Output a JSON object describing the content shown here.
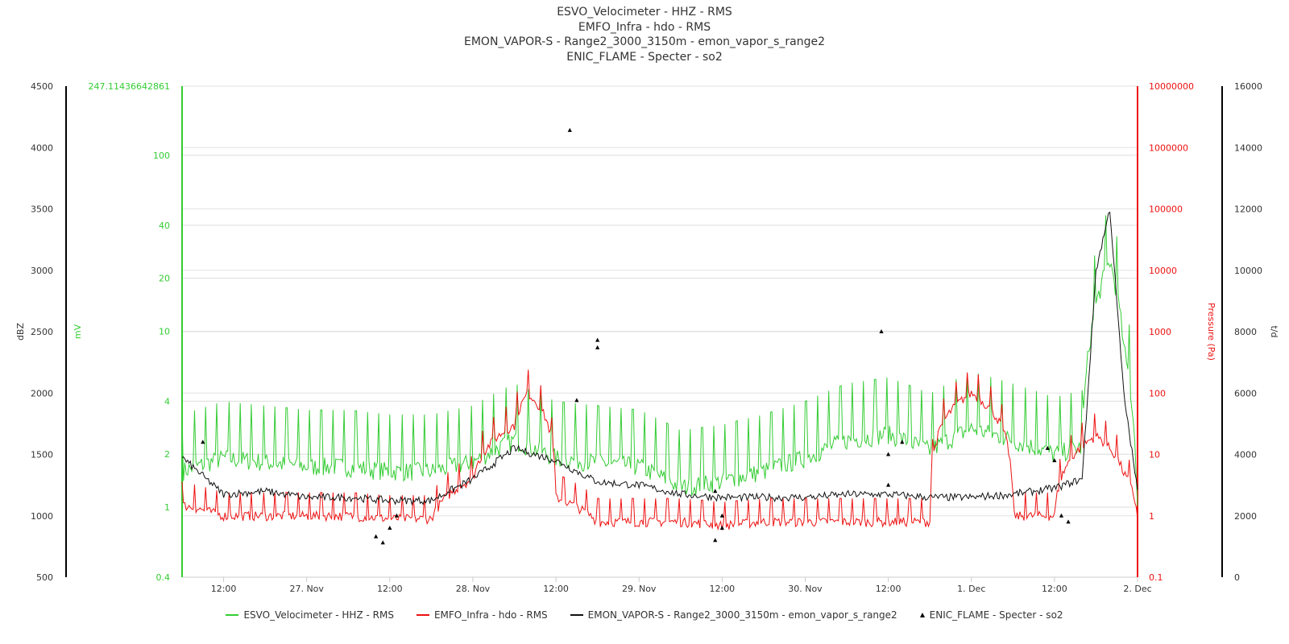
{
  "titles": [
    "ESVO_Velocimeter - HHZ - RMS",
    "EMFO_Infra - hdo - RMS",
    "EMON_VAPOR-S - Range2_3000_3150m - emon_vapor_s_range2",
    "ENIC_FLAME - Specter - so2"
  ],
  "colors": {
    "green": "#33cc33",
    "red": "#ee1111",
    "black": "#111111",
    "axis_text": "#333333"
  },
  "chart_data": {
    "type": "line",
    "x_range": [
      "2023-11-26T06:00",
      "2023-12-02T00:00"
    ],
    "x_ticks": [
      {
        "label": "12:00",
        "t": "2023-11-26T12:00"
      },
      {
        "label": "27. Nov",
        "t": "2023-11-27T00:00"
      },
      {
        "label": "12:00",
        "t": "2023-11-27T12:00"
      },
      {
        "label": "28. Nov",
        "t": "2023-11-28T00:00"
      },
      {
        "label": "12:00",
        "t": "2023-11-28T12:00"
      },
      {
        "label": "29. Nov",
        "t": "2023-11-29T00:00"
      },
      {
        "label": "12:00",
        "t": "2023-11-29T12:00"
      },
      {
        "label": "30. Nov",
        "t": "2023-11-30T00:00"
      },
      {
        "label": "12:00",
        "t": "2023-11-30T12:00"
      },
      {
        "label": "1. Dec",
        "t": "2023-12-01T00:00"
      },
      {
        "label": "12:00",
        "t": "2023-12-01T12:00"
      },
      {
        "label": "2. Dec",
        "t": "2023-12-02T00:00"
      }
    ],
    "axes": {
      "dbz": {
        "label": "dBZ",
        "min": 500,
        "max": 4500,
        "ticks": [
          "500",
          "1000",
          "1500",
          "2000",
          "2500",
          "3000",
          "3500",
          "4000",
          "4500"
        ]
      },
      "mv": {
        "label": "mV",
        "scale": "log",
        "min": 0.4,
        "max": 247.11436642861,
        "ticks": [
          "0.4",
          "1",
          "2",
          "4",
          "10",
          "20",
          "40",
          "100",
          "247.11436642861"
        ]
      },
      "pressure": {
        "label": "Pressure (Pa)",
        "scale": "log",
        "min": 0.1,
        "max": 10000000,
        "ticks": [
          "0.1",
          "1",
          "10",
          "100",
          "1000",
          "10000",
          "100000",
          "1000000",
          "10000000"
        ]
      },
      "td": {
        "label": "t/d",
        "min": 0,
        "max": 16000,
        "ticks": [
          "0",
          "2000",
          "4000",
          "6000",
          "8000",
          "10000",
          "12000",
          "14000",
          "16000"
        ]
      }
    },
    "series": [
      {
        "name": "ESVO_Velocimeter - HHZ - RMS",
        "type": "line",
        "axis": "mv",
        "color": "#33cc33",
        "points": [
          [
            "2023-11-26T06:00",
            1.6
          ],
          [
            "2023-11-26T12:00",
            1.9
          ],
          [
            "2023-11-26T18:00",
            1.8
          ],
          [
            "2023-11-27T00:00",
            1.7
          ],
          [
            "2023-11-27T06:00",
            1.7
          ],
          [
            "2023-11-27T12:00",
            1.6
          ],
          [
            "2023-11-27T18:00",
            1.6
          ],
          [
            "2023-11-28T00:00",
            1.8
          ],
          [
            "2023-11-28T06:00",
            2.4
          ],
          [
            "2023-11-28T12:00",
            1.9
          ],
          [
            "2023-11-28T18:00",
            1.8
          ],
          [
            "2023-11-29T00:00",
            1.7
          ],
          [
            "2023-11-29T06:00",
            1.3
          ],
          [
            "2023-11-29T12:00",
            1.4
          ],
          [
            "2023-11-29T18:00",
            1.6
          ],
          [
            "2023-11-30T00:00",
            1.9
          ],
          [
            "2023-11-30T06:00",
            2.4
          ],
          [
            "2023-11-30T12:00",
            2.6
          ],
          [
            "2023-11-30T18:00",
            2.1
          ],
          [
            "2023-12-01T00:00",
            2.8
          ],
          [
            "2023-12-01T06:00",
            2.4
          ],
          [
            "2023-12-01T12:00",
            2.0
          ],
          [
            "2023-12-01T16:00",
            2.2
          ],
          [
            "2023-12-01T18:00",
            14
          ],
          [
            "2023-12-01T20:00",
            25
          ],
          [
            "2023-12-01T22:00",
            8
          ],
          [
            "2023-12-02T00:00",
            1.0
          ]
        ]
      },
      {
        "name": "EMFO_Infra - hdo - RMS",
        "type": "line",
        "axis": "pressure",
        "color": "#ee1111",
        "points": [
          [
            "2023-11-26T06:00",
            1.5
          ],
          [
            "2023-11-26T12:00",
            1.0
          ],
          [
            "2023-11-26T18:00",
            1.0
          ],
          [
            "2023-11-27T00:00",
            1.0
          ],
          [
            "2023-11-27T06:00",
            1.0
          ],
          [
            "2023-11-27T12:00",
            0.9
          ],
          [
            "2023-11-27T18:00",
            0.9
          ],
          [
            "2023-11-28T00:00",
            4
          ],
          [
            "2023-11-28T06:00",
            30
          ],
          [
            "2023-11-28T08:00",
            100
          ],
          [
            "2023-11-28T12:00",
            2
          ],
          [
            "2023-11-28T18:00",
            0.8
          ],
          [
            "2023-11-29T00:00",
            0.8
          ],
          [
            "2023-11-29T06:00",
            0.8
          ],
          [
            "2023-11-29T12:00",
            0.7
          ],
          [
            "2023-11-29T18:00",
            0.8
          ],
          [
            "2023-11-30T00:00",
            0.8
          ],
          [
            "2023-11-30T06:00",
            0.8
          ],
          [
            "2023-11-30T12:00",
            0.8
          ],
          [
            "2023-11-30T18:00",
            0.8
          ],
          [
            "2023-12-01T00:00",
            100
          ],
          [
            "2023-12-01T06:00",
            1.0
          ],
          [
            "2023-12-01T12:00",
            1.0
          ],
          [
            "2023-12-01T18:00",
            20
          ],
          [
            "2023-12-01T22:00",
            5
          ],
          [
            "2023-12-02T00:00",
            1.0
          ]
        ]
      },
      {
        "name": "EMON_VAPOR-S - Range2_3000_3150m - emon_vapor_s_range2",
        "type": "line",
        "axis": "td",
        "color": "#111111",
        "points": [
          [
            "2023-11-26T06:00",
            3900
          ],
          [
            "2023-11-26T12:00",
            2700
          ],
          [
            "2023-11-26T18:00",
            2800
          ],
          [
            "2023-11-27T00:00",
            2600
          ],
          [
            "2023-11-27T06:00",
            2600
          ],
          [
            "2023-11-27T12:00",
            2500
          ],
          [
            "2023-11-27T18:00",
            2500
          ],
          [
            "2023-11-28T00:00",
            3200
          ],
          [
            "2023-11-28T06:00",
            4200
          ],
          [
            "2023-11-28T12:00",
            3800
          ],
          [
            "2023-11-28T18:00",
            3100
          ],
          [
            "2023-11-29T00:00",
            3000
          ],
          [
            "2023-11-29T06:00",
            2700
          ],
          [
            "2023-11-29T12:00",
            2600
          ],
          [
            "2023-11-29T18:00",
            2600
          ],
          [
            "2023-11-30T00:00",
            2600
          ],
          [
            "2023-11-30T06:00",
            2700
          ],
          [
            "2023-11-30T12:00",
            2700
          ],
          [
            "2023-11-30T18:00",
            2600
          ],
          [
            "2023-12-01T00:00",
            2600
          ],
          [
            "2023-12-01T06:00",
            2700
          ],
          [
            "2023-12-01T12:00",
            2900
          ],
          [
            "2023-12-01T16:00",
            3200
          ],
          [
            "2023-12-01T18:00",
            10000
          ],
          [
            "2023-12-01T20:00",
            12000
          ],
          [
            "2023-12-01T22:00",
            6000
          ],
          [
            "2023-12-02T00:00",
            2800
          ]
        ]
      },
      {
        "name": "ENIC_FLAME - Specter - so2",
        "type": "scatter",
        "axis": "dbz",
        "color": "#000000",
        "points": [
          [
            "2023-11-26T09:00",
            1600
          ],
          [
            "2023-11-27T10:00",
            830
          ],
          [
            "2023-11-27T11:00",
            780
          ],
          [
            "2023-11-27T12:00",
            900
          ],
          [
            "2023-11-27T13:00",
            1000
          ],
          [
            "2023-11-28T14:00",
            4140
          ],
          [
            "2023-11-28T15:00",
            1940
          ],
          [
            "2023-11-28T18:00",
            2430
          ],
          [
            "2023-11-28T18:00",
            2370
          ],
          [
            "2023-11-29T11:00",
            1200
          ],
          [
            "2023-11-29T11:00",
            800
          ],
          [
            "2023-11-29T12:00",
            900
          ],
          [
            "2023-11-29T12:00",
            1000
          ],
          [
            "2023-11-30T11:00",
            2500
          ],
          [
            "2023-11-30T12:00",
            1500
          ],
          [
            "2023-11-30T12:00",
            1250
          ],
          [
            "2023-11-30T14:00",
            1600
          ],
          [
            "2023-12-01T11:00",
            1550
          ],
          [
            "2023-12-01T12:00",
            1450
          ],
          [
            "2023-12-01T13:00",
            1000
          ],
          [
            "2023-12-01T14:00",
            950
          ]
        ]
      }
    ],
    "legend_placement": "bottom-center"
  },
  "legend": [
    {
      "label": "ESVO_Velocimeter - HHZ - RMS",
      "color": "#33cc33",
      "symbol": "line"
    },
    {
      "label": "EMFO_Infra - hdo - RMS",
      "color": "#ee1111",
      "symbol": "line"
    },
    {
      "label": "EMON_VAPOR-S - Range2_3000_3150m - emon_vapor_s_range2",
      "color": "#111111",
      "symbol": "line"
    },
    {
      "label": "ENIC_FLAME - Specter - so2",
      "color": "#000000",
      "symbol": "triangle"
    }
  ]
}
